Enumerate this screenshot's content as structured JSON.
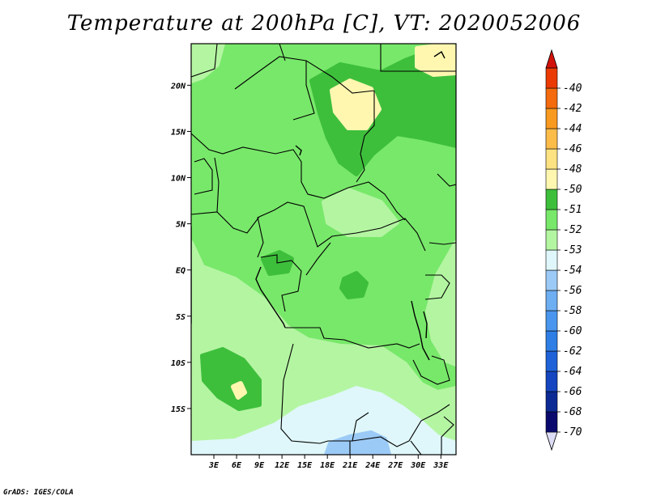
{
  "title": "Temperature at 200hPa [C], VT: 2020052006",
  "credit": "GrADS: IGES/COLA",
  "map": {
    "lon_range": [
      0,
      35
    ],
    "lat_range": [
      -20,
      24.5
    ],
    "lat_ticks": [
      {
        "value": 20,
        "label": "20N"
      },
      {
        "value": 15,
        "label": "15N"
      },
      {
        "value": 10,
        "label": "10N"
      },
      {
        "value": 5,
        "label": "5N"
      },
      {
        "value": 0,
        "label": "EQ"
      },
      {
        "value": -5,
        "label": "5S"
      },
      {
        "value": -10,
        "label": "10S"
      },
      {
        "value": -15,
        "label": "15S"
      }
    ],
    "lon_ticks": [
      {
        "value": 3,
        "label": "3E"
      },
      {
        "value": 6,
        "label": "6E"
      },
      {
        "value": 9,
        "label": "9E"
      },
      {
        "value": 12,
        "label": "12E"
      },
      {
        "value": 15,
        "label": "15E"
      },
      {
        "value": 18,
        "label": "18E"
      },
      {
        "value": 21,
        "label": "21E"
      },
      {
        "value": 24,
        "label": "24E"
      },
      {
        "value": 27,
        "label": "27E"
      },
      {
        "value": 30,
        "label": "30E"
      },
      {
        "value": 33,
        "label": "33E"
      }
    ]
  },
  "colorbar": {
    "colors": [
      "#dcdcf5",
      "#0a0a6e",
      "#0b2a94",
      "#1546c0",
      "#1f62d8",
      "#2f7ee6",
      "#4a96ee",
      "#6eaef2",
      "#9ccaf6",
      "#dff7fa",
      "#b4f5a2",
      "#78e86a",
      "#3ebf3c",
      "#fff7b0",
      "#fde281",
      "#fcbc4a",
      "#f89a20",
      "#f36b0e",
      "#eb3a04",
      "#d2120a"
    ],
    "labels": [
      "-70",
      "-68",
      "-66",
      "-64",
      "-62",
      "-60",
      "-58",
      "-56",
      "-54",
      "-53",
      "-52",
      "-51",
      "-50",
      "-48",
      "-46",
      "-44",
      "-42",
      "-40"
    ]
  },
  "field_colors": {
    "base": "#78e86a",
    "lighter": "#b4f5a2",
    "darker": "#3ebf3c",
    "pale_yellow": "#fff7b0",
    "cyan": "#dff7fa",
    "light_blue": "#9ccaf6"
  }
}
